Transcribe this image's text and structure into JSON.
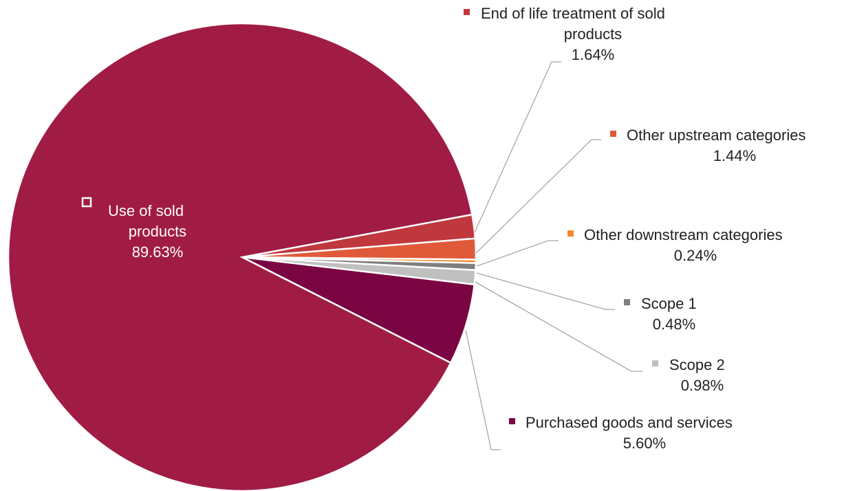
{
  "chart_data": {
    "type": "pie",
    "title": "",
    "start_angle_deg": -10.5,
    "direction": "clockwise",
    "slices": [
      {
        "key": "eol",
        "name": "End of life treatment of sold products",
        "value": 1.64,
        "value_label": "1.64%",
        "color": "#c0383e"
      },
      {
        "key": "other_up",
        "name": "Other upstream categories",
        "value": 1.44,
        "value_label": "1.44%",
        "color": "#e05a3a"
      },
      {
        "key": "other_down",
        "name": "Other downstream categories",
        "value": 0.24,
        "value_label": "0.24%",
        "color": "#f08a30"
      },
      {
        "key": "scope1",
        "name": "Scope 1",
        "value": 0.48,
        "value_label": "0.48%",
        "color": "#7f7f7f"
      },
      {
        "key": "scope2",
        "name": "Scope 2",
        "value": 0.98,
        "value_label": "0.98%",
        "color": "#c0c0c0"
      },
      {
        "key": "purchased",
        "name": "Purchased goods and services",
        "value": 5.6,
        "value_label": "5.60%",
        "color": "#7a0542"
      },
      {
        "key": "use_sold",
        "name": "Use of sold products",
        "value": 89.63,
        "value_label": "89.63%",
        "color": "#a01c44"
      }
    ]
  },
  "labels": {
    "eol": {
      "name_lines": [
        "End of life treatment of sold",
        "products"
      ],
      "value_label": "1.64%"
    },
    "other_up": {
      "name_lines": [
        "Other upstream categories"
      ],
      "value_label": "1.44%"
    },
    "other_down": {
      "name_lines": [
        "Other downstream categories"
      ],
      "value_label": "0.24%"
    },
    "scope1": {
      "name_lines": [
        "Scope 1"
      ],
      "value_label": "0.48%"
    },
    "scope2": {
      "name_lines": [
        "Scope 2"
      ],
      "value_label": "0.98%"
    },
    "purchased": {
      "name_lines": [
        "Purchased goods and services"
      ],
      "value_label": "5.60%"
    },
    "use_sold": {
      "name_lines": [
        "Use of sold",
        "products"
      ],
      "value_label": "89.63%"
    }
  }
}
